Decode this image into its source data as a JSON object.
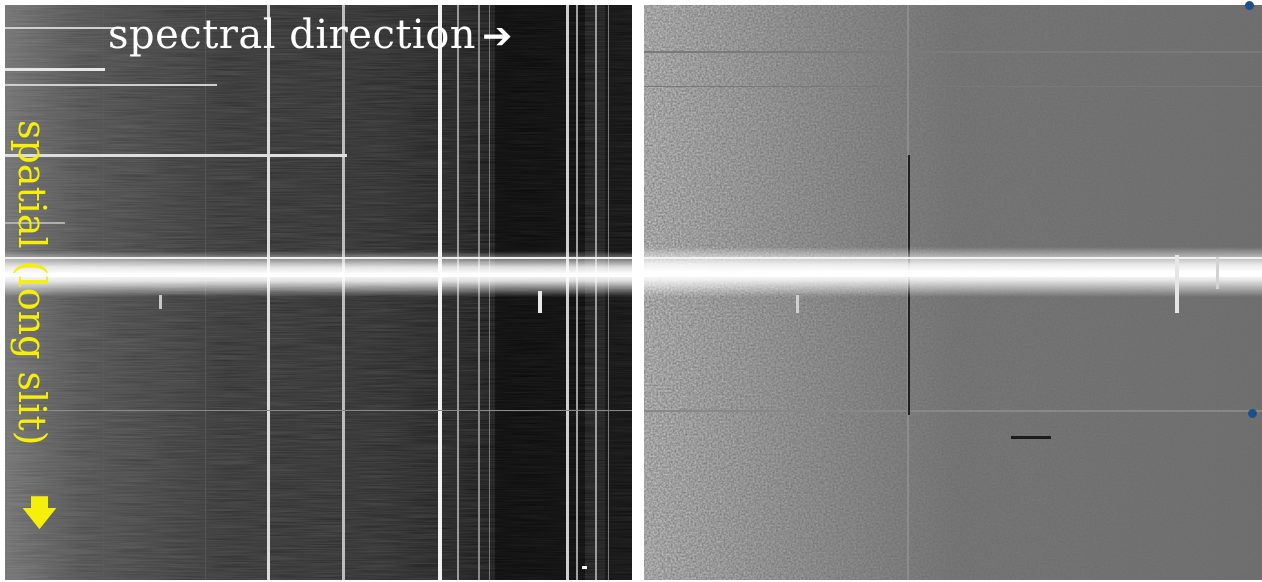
{
  "left_image": {
    "spectral_label": "spectral direction",
    "spectral_arrow": "➔",
    "spatial_label": "spatial (long slit)",
    "spatial_arrow": "🡇"
  },
  "colors": {
    "spectral_label": "#ffffff",
    "spatial_label": "#f5ef0a",
    "marker": "#1c4f8c"
  }
}
